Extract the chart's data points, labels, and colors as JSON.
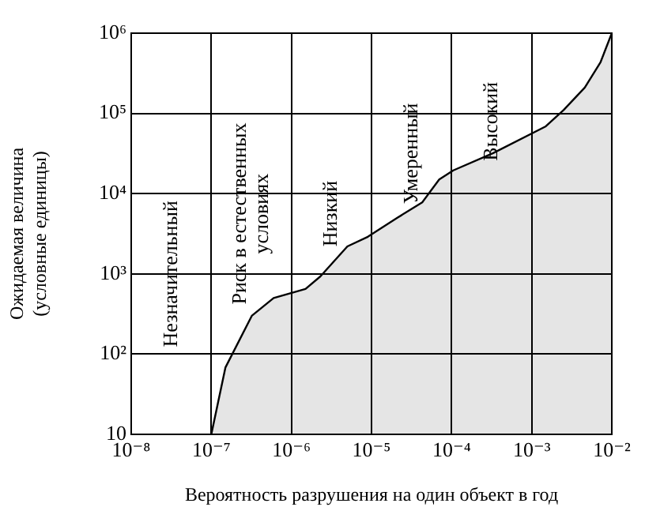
{
  "chart_data": {
    "type": "line",
    "xlabel": "Вероятность разрушения на один объект в год",
    "ylabel": "Ожидаемая величина\n(условные единицы)",
    "log": "xy",
    "grid": true,
    "legend": false,
    "marker": "none",
    "line_style": "solid",
    "xlim": [
      1e-08,
      0.01
    ],
    "ylim": [
      10,
      1000000
    ],
    "xticks": [
      {
        "value": 1e-08,
        "label": "10⁻⁸"
      },
      {
        "value": 1e-07,
        "label": "10⁻⁷"
      },
      {
        "value": 1e-06,
        "label": "10⁻⁶"
      },
      {
        "value": 1e-05,
        "label": "10⁻⁵"
      },
      {
        "value": 0.0001,
        "label": "10⁻⁴"
      },
      {
        "value": 0.001,
        "label": "10⁻³"
      },
      {
        "value": 0.01,
        "label": "10⁻²"
      }
    ],
    "yticks": [
      10,
      {
        "value": 100,
        "label": "10²"
      },
      {
        "value": 1000,
        "label": "10³"
      },
      {
        "value": 10000,
        "label": "10⁴"
      },
      {
        "value": 100000,
        "label": "10⁵"
      },
      {
        "value": 1000000,
        "label": "10⁶"
      }
    ],
    "series": [
      {
        "type": "area",
        "color": "#000000",
        "x": [
          1e-07,
          1.5e-07,
          3.2e-07,
          6e-07,
          1.5e-06,
          2.3e-06,
          5e-06,
          9e-06,
          2.1e-05,
          4.3e-05,
          7e-05,
          0.000105,
          0.00033,
          0.0015,
          0.0025,
          0.0046,
          0.0072,
          0.01
        ],
        "values": [
          10,
          68,
          300,
          500,
          650,
          930,
          2200,
          2900,
          5000,
          7800,
          15000,
          19500,
          32000,
          69000,
          110000,
          210000,
          430000,
          1000000
        ]
      }
    ],
    "annotations": [
      "Незначительный",
      "Риск в естественных условиях",
      "Низкий",
      "Умеренный",
      "Высокий"
    ]
  }
}
